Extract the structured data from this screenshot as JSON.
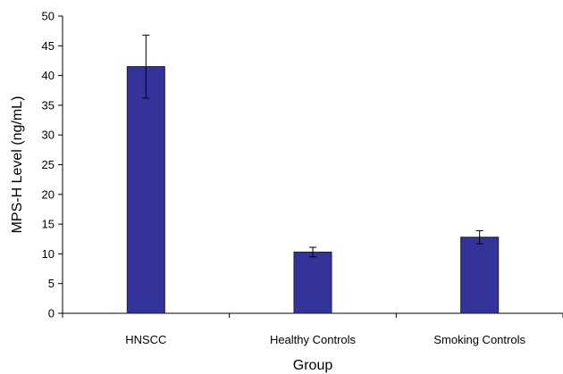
{
  "chart_data": {
    "type": "bar",
    "title": "",
    "xlabel": "Group",
    "ylabel": "MPS-H Level (ng/mL)",
    "categories": [
      "HNSCC",
      "Healthy Controls",
      "Smoking Controls"
    ],
    "values": [
      41.5,
      10.3,
      12.8
    ],
    "error": [
      5.3,
      0.8,
      1.1
    ],
    "ylim": [
      0,
      50
    ],
    "yticks": [
      0,
      5,
      10,
      15,
      20,
      25,
      30,
      35,
      40,
      45,
      50
    ],
    "ytick_labels": [
      "0",
      "5",
      "10",
      "15",
      "20",
      "25",
      "30",
      "35",
      "40",
      "45",
      "50"
    ],
    "grid": false,
    "legend": "none",
    "bar_color": "#333399",
    "bar_edge_color": "#1a1a4d"
  }
}
